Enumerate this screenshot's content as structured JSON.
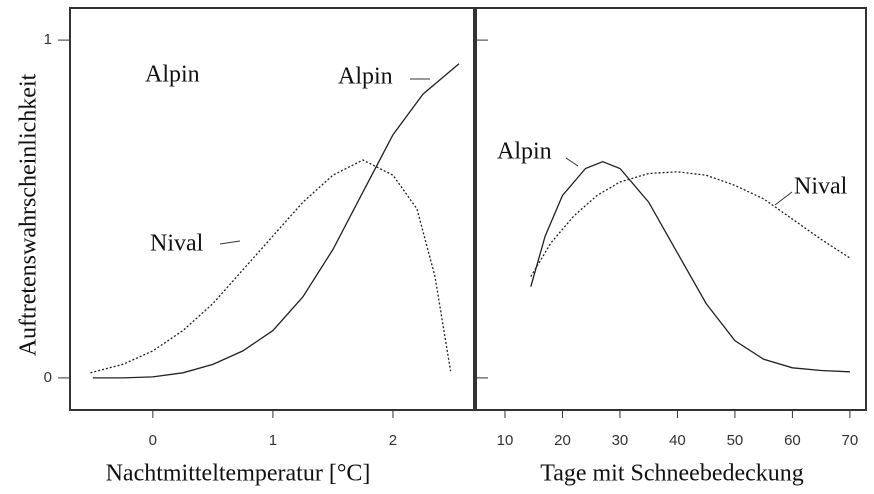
{
  "chart_data": [
    {
      "type": "line",
      "x_label": "Nachtmitteltemperatur [°C]",
      "y_label": "Auftretenswahrscheinlichkeit",
      "annotations": [
        "Alpin"
      ],
      "xlim": [
        -0.69,
        2.675
      ],
      "xticks": [
        0,
        1,
        2
      ],
      "ylim": [
        -0.095,
        1.095
      ],
      "yticks": [
        0,
        1
      ],
      "series": [
        {
          "name": "Alpin",
          "color": "#222222",
          "style": "solid",
          "x": [
            -0.5,
            -0.25,
            0,
            0.25,
            0.5,
            0.75,
            1,
            1.25,
            1.5,
            1.75,
            2,
            2.25,
            2.55
          ],
          "values": [
            0.0,
            0.0,
            0.003,
            0.015,
            0.04,
            0.08,
            0.14,
            0.24,
            0.38,
            0.55,
            0.72,
            0.84,
            0.93
          ]
        },
        {
          "name": "Nival",
          "color": "#222222",
          "style": "dotted",
          "x": [
            -0.52,
            -0.25,
            0,
            0.25,
            0.5,
            0.75,
            1,
            1.25,
            1.5,
            1.75,
            2,
            2.2,
            2.35,
            2.48
          ],
          "values": [
            0.015,
            0.04,
            0.08,
            0.14,
            0.22,
            0.32,
            0.42,
            0.52,
            0.6,
            0.645,
            0.6,
            0.5,
            0.3,
            0.02
          ]
        }
      ]
    },
    {
      "type": "line",
      "x_label": "Tage mit Schneebedeckung",
      "xlim": [
        4.96,
        72.8
      ],
      "xticks": [
        10,
        20,
        30,
        40,
        50,
        60,
        70
      ],
      "ylim": [
        -0.095,
        1.095
      ],
      "series": [
        {
          "name": "Alpin",
          "color": "#222222",
          "style": "solid",
          "x": [
            14.5,
            17,
            20,
            24,
            27,
            30,
            35,
            40,
            45,
            50,
            55,
            60,
            65,
            70
          ],
          "values": [
            0.27,
            0.42,
            0.54,
            0.62,
            0.64,
            0.62,
            0.52,
            0.37,
            0.22,
            0.11,
            0.055,
            0.03,
            0.022,
            0.018
          ]
        },
        {
          "name": "Nival",
          "color": "#222222",
          "style": "dotted",
          "x": [
            14.5,
            18,
            22,
            26,
            30,
            35,
            40,
            45,
            50,
            55,
            60,
            65,
            70
          ],
          "values": [
            0.3,
            0.4,
            0.48,
            0.54,
            0.58,
            0.605,
            0.61,
            0.6,
            0.57,
            0.53,
            0.47,
            0.41,
            0.355
          ]
        }
      ]
    }
  ]
}
